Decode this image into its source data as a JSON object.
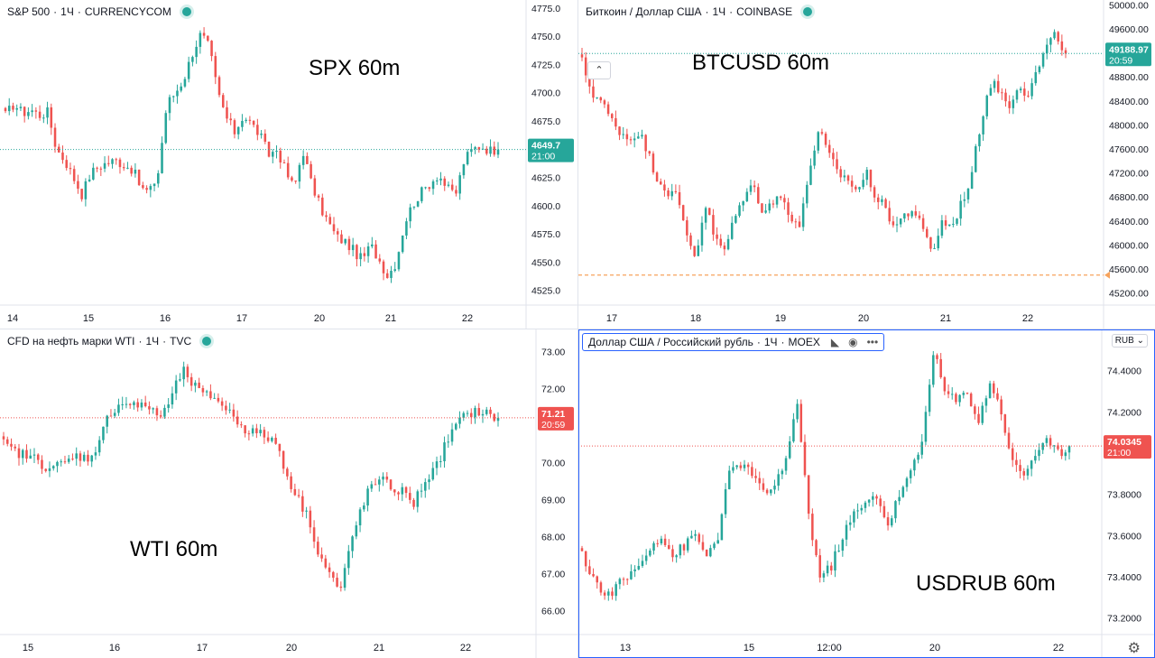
{
  "colors": {
    "up": "#26a69a",
    "down": "#ef5350",
    "axis_text": "#131722",
    "grid_line": "#e0e3eb",
    "active_border": "#2962ff",
    "dash_line": "#f7a35c"
  },
  "chart_data": [
    {
      "type": "candlestick",
      "legend": {
        "symbol": "S&P 500",
        "interval": "1Ч",
        "source": "CURRENCYCOM"
      },
      "overlay_title": "SPX 60m",
      "y_ticks": [
        4775,
        4750,
        4725,
        4700,
        4675,
        4650,
        4625,
        4600,
        4575,
        4550,
        4525
      ],
      "y_tick_labels": [
        "4775.0",
        "4750.0",
        "4725.0",
        "4700.0",
        "4675.0",
        "4650.0",
        "4625.0",
        "4600.0",
        "4575.0",
        "4550.0",
        "4525.0"
      ],
      "ylim": [
        4512,
        4782
      ],
      "x_ticks": [
        "14",
        "15",
        "16",
        "17",
        "20",
        "21",
        "22"
      ],
      "last_price": {
        "price": "4649.7",
        "time": "21:00",
        "value": 4649.7,
        "direction": "up"
      },
      "close_path": [
        4680,
        4690,
        4682,
        4685,
        4680,
        4683,
        4650,
        4640,
        4625,
        4610,
        4628,
        4635,
        4638,
        4640,
        4636,
        4632,
        4615,
        4612,
        4630,
        4690,
        4700,
        4712,
        4735,
        4752,
        4740,
        4700,
        4678,
        4665,
        4680,
        4672,
        4662,
        4645,
        4650,
        4630,
        4615,
        4650,
        4620,
        4600,
        4585,
        4572,
        4568,
        4560,
        4552,
        4565,
        4552,
        4538,
        4550,
        4585,
        4602,
        4612,
        4620,
        4628,
        4615,
        4610,
        4640,
        4650,
        4653,
        4649,
        4650
      ]
    },
    {
      "type": "candlestick",
      "legend": {
        "symbol": "Биткоин / Доллар США",
        "interval": "1Ч",
        "source": "COINBASE"
      },
      "overlay_title": "BTCUSD 60m",
      "y_ticks": [
        50000,
        49600,
        49200,
        48800,
        48400,
        48000,
        47600,
        47200,
        46800,
        46400,
        46000,
        45600,
        45200
      ],
      "y_tick_labels": [
        "50000.00",
        "49600.00",
        "49200.00",
        "48800.00",
        "48400.00",
        "48000.00",
        "47600.00",
        "47200.00",
        "46800.00",
        "46400.00",
        "46000.00",
        "45600.00",
        "45200.00"
      ],
      "ylim": [
        45000,
        50080
      ],
      "x_ticks": [
        "17",
        "18",
        "19",
        "20",
        "21",
        "22"
      ],
      "last_price": {
        "price": "49188.97",
        "time": "20:59",
        "value": 49188.97,
        "direction": "up"
      },
      "alert_line": 45500,
      "close_path": [
        49050,
        48550,
        48400,
        48100,
        47900,
        47750,
        47900,
        47500,
        47100,
        46900,
        46800,
        46200,
        45800,
        46700,
        46100,
        45900,
        46400,
        46800,
        47000,
        46600,
        46700,
        46800,
        46500,
        46300,
        47300,
        47900,
        47500,
        47200,
        47100,
        46900,
        47200,
        46800,
        46600,
        46300,
        46500,
        46600,
        46200,
        45900,
        46400,
        46300,
        46700,
        47100,
        48000,
        48700,
        48600,
        48300,
        48700,
        48500,
        48900,
        49300,
        49500,
        49200
      ]
    },
    {
      "type": "candlestick",
      "legend": {
        "symbol": "CFD на нефть марки WTI",
        "interval": "1Ч",
        "source": "TVC"
      },
      "overlay_title": "WTI 60m",
      "y_ticks": [
        73,
        72,
        71,
        70,
        69,
        68,
        67,
        66
      ],
      "y_tick_labels": [
        "73.00",
        "72.00",
        "71.00",
        "70.00",
        "69.00",
        "68.00",
        "67.00",
        "66.00"
      ],
      "ylim": [
        65.35,
        73.6
      ],
      "x_ticks": [
        "15",
        "16",
        "17",
        "20",
        "21",
        "22"
      ],
      "last_price": {
        "price": "71.21",
        "time": "20:59",
        "value": 71.21,
        "direction": "down"
      },
      "close_path": [
        70.5,
        70.3,
        70.2,
        70.1,
        69.9,
        69.9,
        70.0,
        70.2,
        70.1,
        70.5,
        71.3,
        71.6,
        71.6,
        71.5,
        71.5,
        71.2,
        71.8,
        72.5,
        72.1,
        71.8,
        71.8,
        71.5,
        71.2,
        70.9,
        70.8,
        70.7,
        70.5,
        69.6,
        69.0,
        68.5,
        67.5,
        67.0,
        66.5,
        67.8,
        68.8,
        69.4,
        69.5,
        69.3,
        69.2,
        68.9,
        69.5,
        69.8,
        70.5,
        71.0,
        71.3,
        71.4,
        71.3,
        71.2
      ]
    },
    {
      "type": "candlestick",
      "legend": {
        "symbol": "Доллар США / Российский рубль",
        "interval": "1Ч",
        "source": "MOEX"
      },
      "overlay_title": "USDRUB 60m",
      "y_ticks": [
        74.4,
        74.2,
        74.0,
        73.8,
        73.6,
        73.4,
        73.2
      ],
      "y_tick_labels": [
        "74.4000",
        "74.2000",
        "74.0000",
        "73.8000",
        "73.6000",
        "73.4000",
        "73.2000"
      ],
      "ylim": [
        73.12,
        74.6
      ],
      "x_ticks": [
        "13",
        "15",
        "12:00",
        "20",
        "22"
      ],
      "currency_selector": "RUB",
      "last_price": {
        "price": "74.0345",
        "time": "21:00",
        "value": 74.0345,
        "direction": "down"
      },
      "close_path": [
        73.5,
        73.4,
        73.3,
        73.35,
        73.4,
        73.45,
        73.55,
        73.6,
        73.5,
        73.55,
        73.6,
        73.5,
        73.6,
        73.9,
        73.95,
        73.9,
        73.8,
        73.85,
        73.95,
        74.25,
        73.7,
        73.4,
        73.45,
        73.6,
        73.7,
        73.75,
        73.8,
        73.65,
        73.8,
        73.9,
        74.05,
        74.5,
        74.3,
        74.25,
        74.3,
        74.15,
        74.35,
        74.2,
        73.95,
        73.9,
        74.0,
        74.05,
        74.0,
        74.03
      ]
    }
  ]
}
